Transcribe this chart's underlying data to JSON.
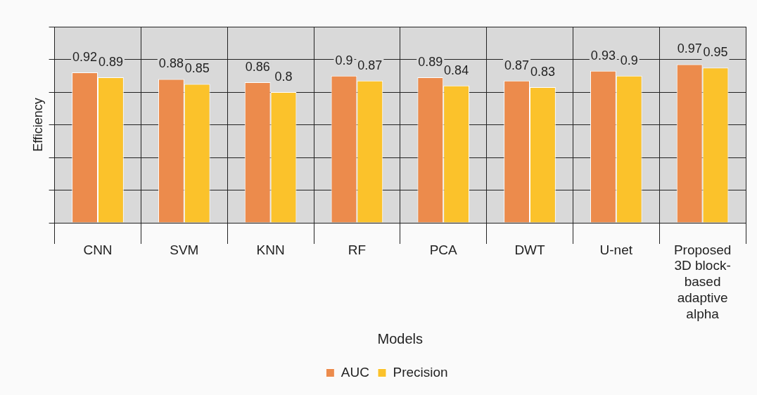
{
  "chart_data": {
    "type": "bar",
    "xlabel": "Models",
    "ylabel": "Efficiency",
    "categories": [
      "CNN",
      "SVM",
      "KNN",
      "RF",
      "PCA",
      "DWT",
      "U-net",
      "Proposed 3D block-based adaptive alpha"
    ],
    "series": [
      {
        "name": "AUC",
        "color": "#ec8b4c",
        "values": [
          0.92,
          0.88,
          0.86,
          0.9,
          0.89,
          0.87,
          0.93,
          0.97
        ]
      },
      {
        "name": "Precision",
        "color": "#fbc22b",
        "values": [
          0.89,
          0.85,
          0.8,
          0.87,
          0.84,
          0.83,
          0.9,
          0.95
        ]
      }
    ],
    "ylim": [
      0,
      1.2
    ],
    "yticks": [
      {
        "value": 0,
        "label": null
      },
      {
        "value": 0.2,
        "label": null
      },
      {
        "value": 0.4,
        "label": null
      },
      {
        "value": 0.6,
        "label": null
      },
      {
        "value": 0.8,
        "label": null
      },
      {
        "value": 1,
        "label": null
      },
      {
        "value": 1.2,
        "label": null
      }
    ],
    "tick_labels": "x",
    "grid": true,
    "legend": "bottom",
    "data_labels": true
  }
}
